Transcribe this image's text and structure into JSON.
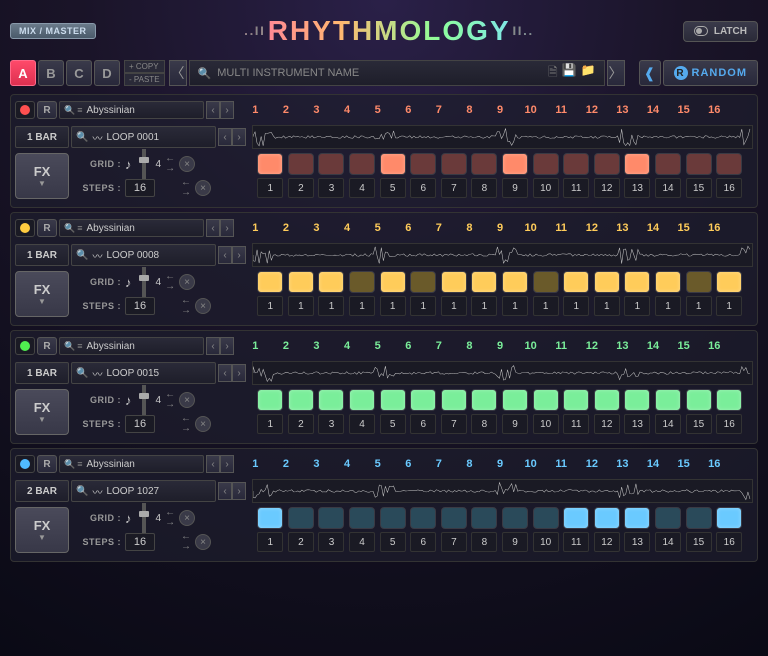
{
  "header": {
    "mix_master": "MIX / MASTER",
    "logo": "RHYTHMOLOGY",
    "latch": "LATCH"
  },
  "toolbar": {
    "pages": [
      "A",
      "B",
      "C",
      "D"
    ],
    "active_page": 0,
    "copy": "+ COPY",
    "paste": "- PASTE",
    "multi_placeholder": "MULTI INSTRUMENT NAME",
    "random": "RANDOM"
  },
  "tracks": [
    {
      "color": "#ff8a6a",
      "rec_color": "#ff5050",
      "preset": "Abyssinian",
      "bar": "1 BAR",
      "loop": "LOOP 0001",
      "grid_label": "GRID :",
      "steps_label": "STEPS :",
      "steps_count": "16",
      "slider_label": "4",
      "step_numbers": [
        "1",
        "2",
        "3",
        "4",
        "5",
        "6",
        "7",
        "8",
        "9",
        "10",
        "11",
        "12",
        "13",
        "14",
        "15",
        "16"
      ],
      "step_on": [
        1,
        0,
        0,
        0,
        1,
        0,
        0,
        0,
        1,
        0,
        0,
        0,
        1,
        0,
        0,
        0
      ],
      "step_off_color": "#6a3a3a",
      "step_vals": [
        "1",
        "2",
        "3",
        "4",
        "5",
        "6",
        "7",
        "8",
        "9",
        "10",
        "11",
        "12",
        "13",
        "14",
        "15",
        "16"
      ]
    },
    {
      "color": "#ffcc5a",
      "rec_color": "#ffcc40",
      "preset": "Abyssinian",
      "bar": "1 BAR",
      "loop": "LOOP 0008",
      "grid_label": "GRID :",
      "steps_label": "STEPS :",
      "steps_count": "16",
      "slider_label": "4",
      "step_numbers": [
        "1",
        "2",
        "3",
        "4",
        "5",
        "6",
        "7",
        "8",
        "9",
        "10",
        "11",
        "12",
        "13",
        "14",
        "15",
        "16"
      ],
      "step_on": [
        1,
        1,
        1,
        0,
        1,
        0,
        1,
        1,
        1,
        0,
        1,
        1,
        1,
        1,
        0,
        1
      ],
      "step_off_color": "#6a5a2a",
      "step_vals": [
        "1",
        "1",
        "1",
        "1",
        "1",
        "1",
        "1",
        "1",
        "1",
        "1",
        "1",
        "1",
        "1",
        "1",
        "1",
        "1"
      ]
    },
    {
      "color": "#7aee9a",
      "rec_color": "#50ee50",
      "preset": "Abyssinian",
      "bar": "1 BAR",
      "loop": "LOOP 0015",
      "grid_label": "GRID :",
      "steps_label": "STEPS :",
      "steps_count": "16",
      "slider_label": "4",
      "step_numbers": [
        "1",
        "2",
        "3",
        "4",
        "5",
        "6",
        "7",
        "8",
        "9",
        "10",
        "11",
        "12",
        "13",
        "14",
        "15",
        "16"
      ],
      "step_on": [
        1,
        1,
        1,
        1,
        1,
        1,
        1,
        1,
        1,
        1,
        1,
        1,
        1,
        1,
        1,
        1
      ],
      "step_off_color": "#2a5a3a",
      "step_vals": [
        "1",
        "2",
        "3",
        "4",
        "5",
        "6",
        "7",
        "8",
        "9",
        "10",
        "11",
        "12",
        "13",
        "14",
        "15",
        "16"
      ]
    },
    {
      "color": "#6acaff",
      "rec_color": "#50bbff",
      "preset": "Abyssinian",
      "bar": "2 BAR",
      "loop": "LOOP 1027",
      "grid_label": "GRID :",
      "steps_label": "STEPS :",
      "steps_count": "16",
      "slider_label": "4",
      "step_numbers": [
        "1",
        "2",
        "3",
        "4",
        "5",
        "6",
        "7",
        "8",
        "9",
        "10",
        "11",
        "12",
        "13",
        "14",
        "15",
        "16"
      ],
      "step_on": [
        1,
        0,
        0,
        0,
        0,
        0,
        0,
        0,
        0,
        0,
        1,
        1,
        1,
        0,
        0,
        1
      ],
      "step_off_color": "#2a4a5a",
      "step_vals": [
        "1",
        "2",
        "3",
        "4",
        "5",
        "6",
        "7",
        "8",
        "9",
        "10",
        "11",
        "12",
        "13",
        "14",
        "15",
        "16"
      ]
    }
  ]
}
